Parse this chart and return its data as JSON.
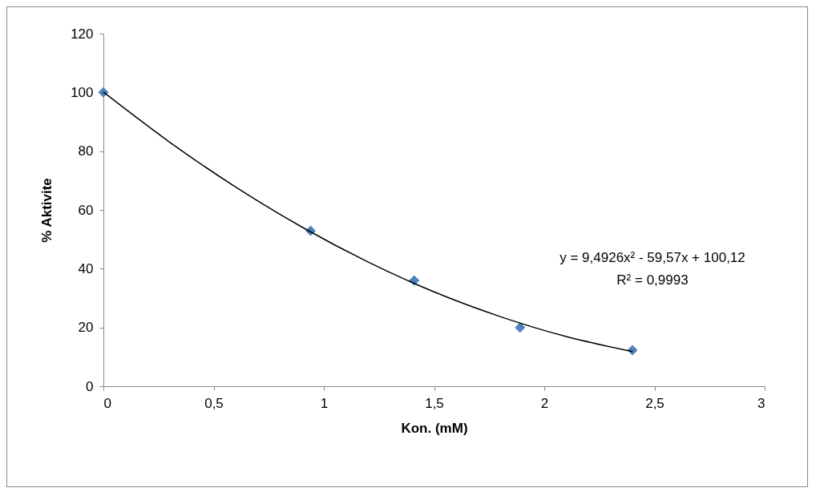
{
  "chart_data": {
    "type": "scatter",
    "xlabel": "Kon. (mM)",
    "ylabel": "% Aktivite",
    "xlim": [
      0,
      3
    ],
    "xticks": [
      0,
      {
        "value": 0.5,
        "label": "0,5"
      },
      1,
      {
        "value": 1.5,
        "label": "1,5"
      },
      2,
      {
        "value": 2.5,
        "label": "2,5"
      },
      3
    ],
    "ylim": [
      0,
      120
    ],
    "yticks": [
      0,
      20,
      40,
      60,
      80,
      100,
      120
    ],
    "grid": false,
    "series": [
      {
        "marker": "diamond",
        "color": "#4f81bd",
        "x": [
          0,
          0.94,
          1.41,
          1.89,
          2.4
        ],
        "values": [
          100,
          52.9,
          36,
          20,
          12.3
        ]
      },
      {
        "type": "line",
        "marker": "none",
        "color": "#000000",
        "x": [
          0,
          0.3,
          0.6,
          0.9,
          1.2,
          1.5,
          1.8,
          2.1,
          2.4
        ],
        "values": [
          100.1,
          83.1,
          67.8,
          54.2,
          42.3,
          32.1,
          23.7,
          16.9,
          11.8
        ]
      }
    ],
    "annotations": [
      "y = 9,4926x² - 59,57x + 100,12",
      "R² = 0,9993"
    ]
  }
}
